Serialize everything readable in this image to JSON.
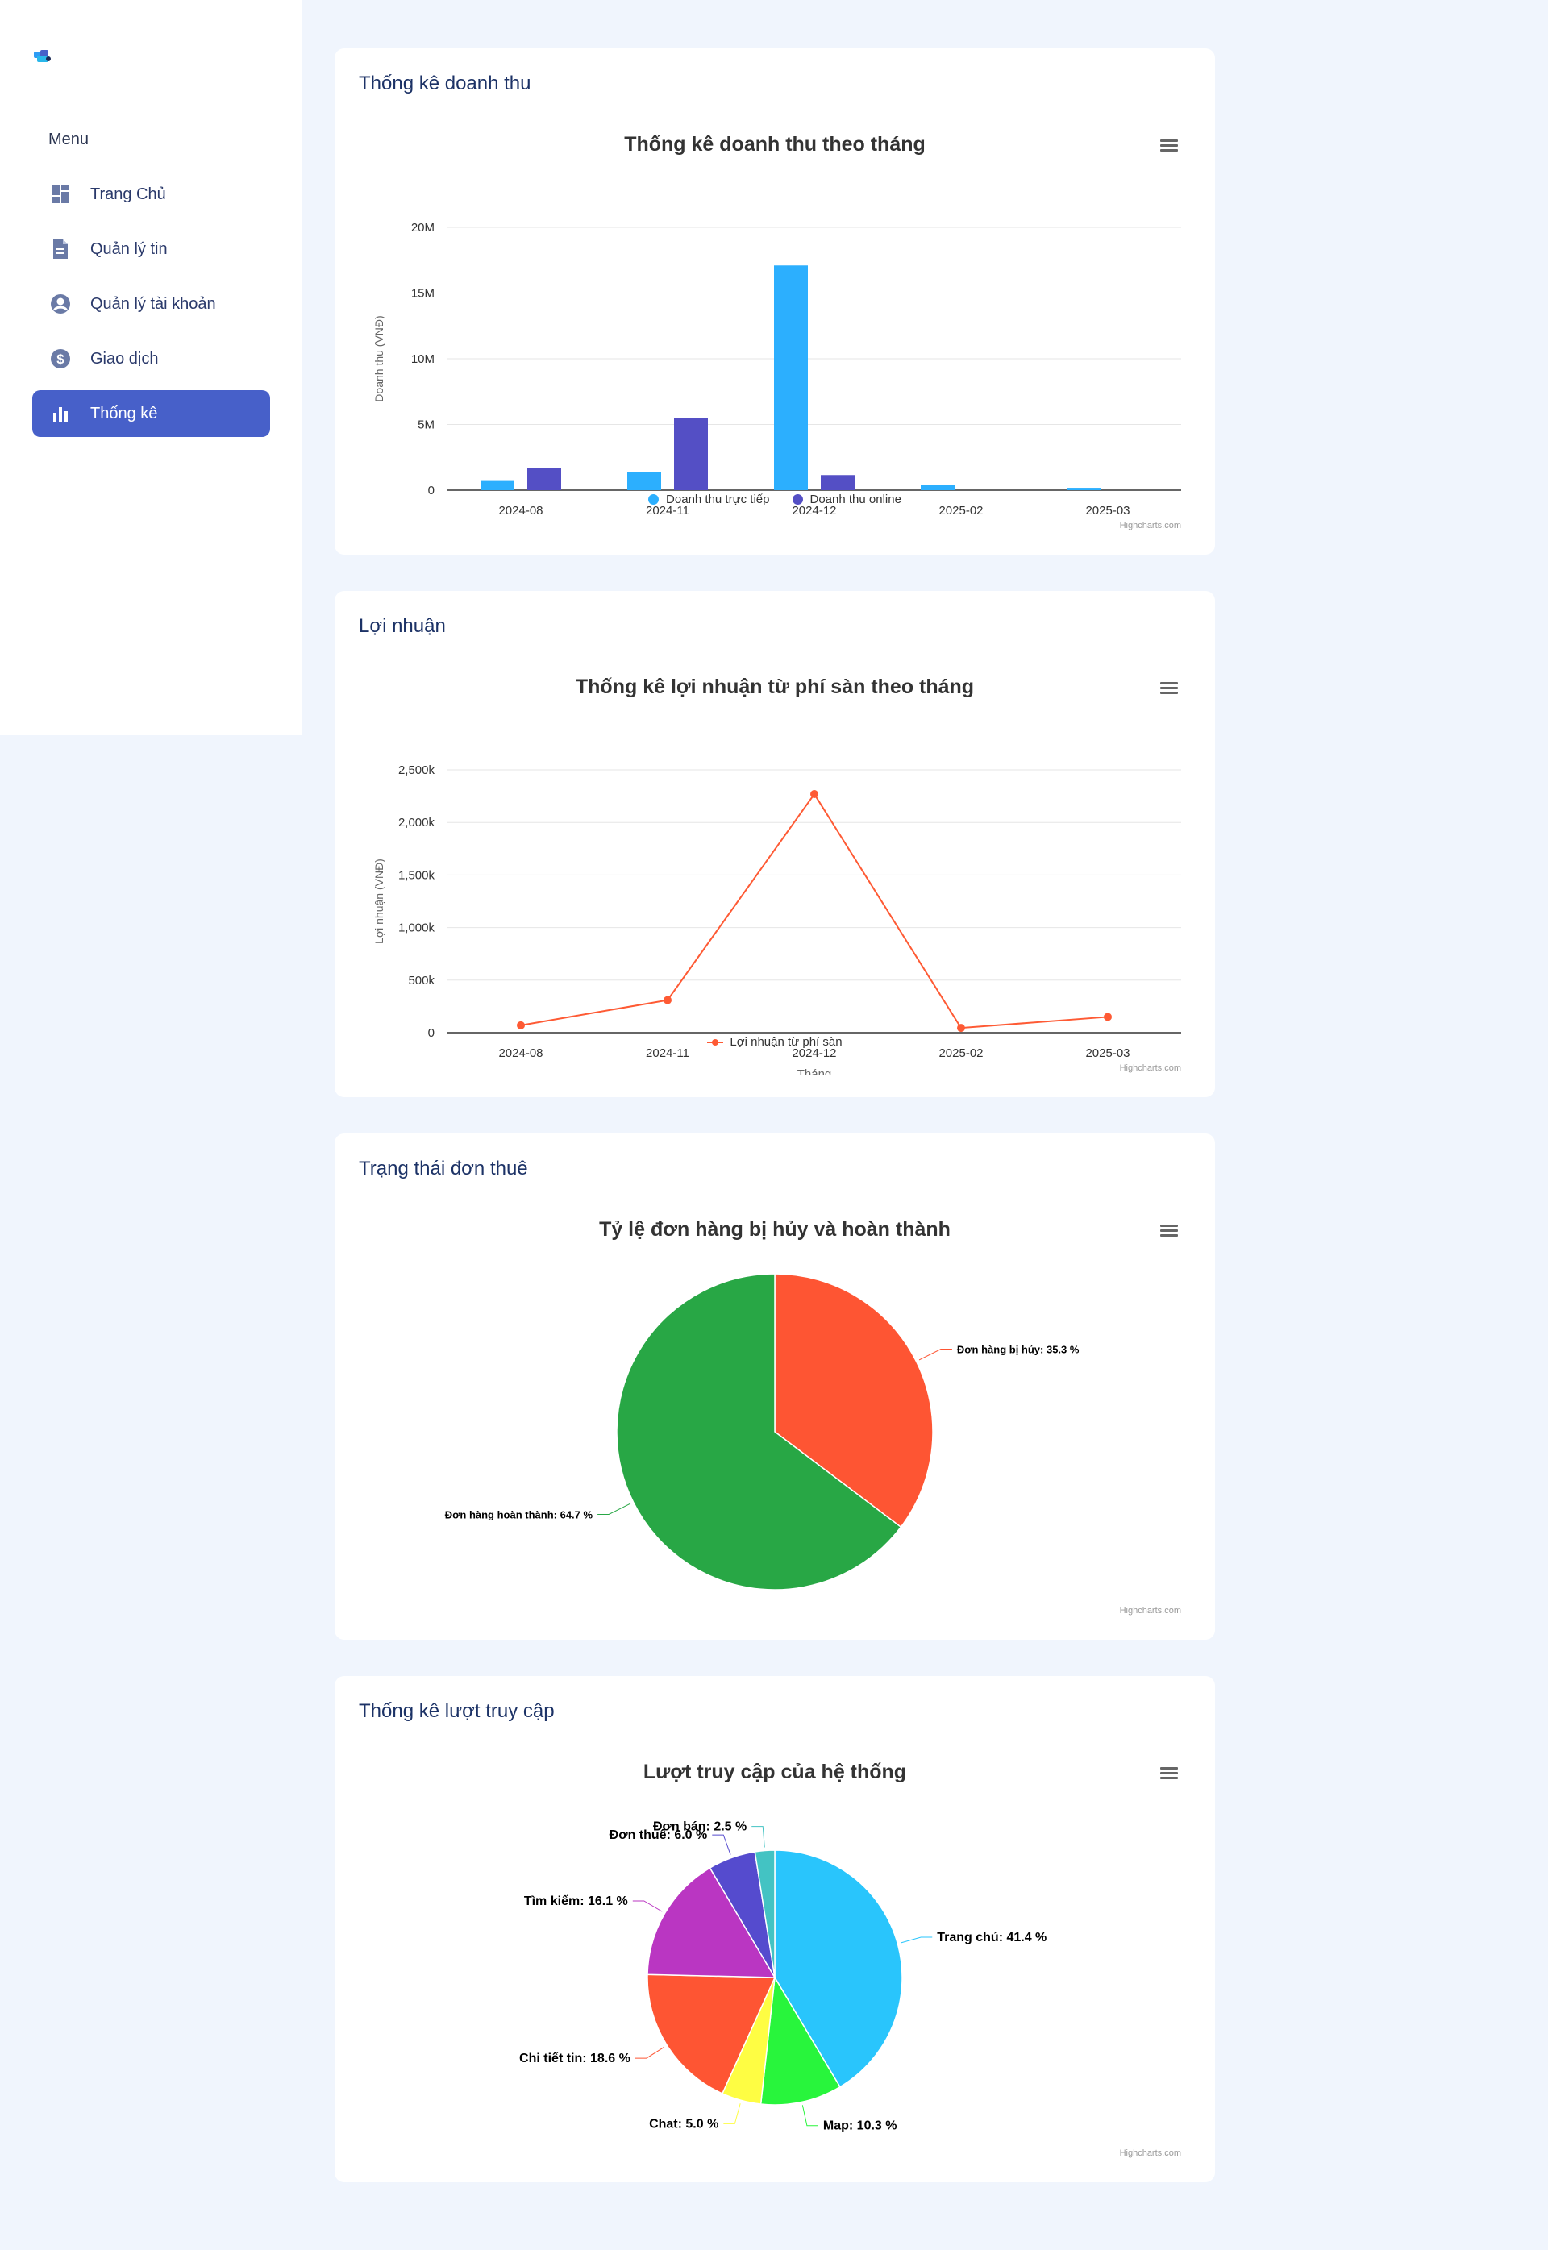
{
  "sidebar": {
    "menu_heading": "Menu",
    "items": [
      {
        "label": "Trang Chủ",
        "icon": "dashboard-icon",
        "active": false
      },
      {
        "label": "Quản lý tin",
        "icon": "document-icon",
        "active": false
      },
      {
        "label": "Quản lý tài khoản",
        "icon": "user-circle-icon",
        "active": false
      },
      {
        "label": "Giao dịch",
        "icon": "dollar-icon",
        "active": false
      },
      {
        "label": "Thống kê",
        "icon": "bar-chart-icon",
        "active": true
      }
    ]
  },
  "cards": [
    {
      "title": "Thống kê doanh thu",
      "credits": "Highcharts.com"
    },
    {
      "title": "Lợi nhuận",
      "credits": "Highcharts.com"
    },
    {
      "title": "Trạng thái đơn thuê",
      "credits": "Highcharts.com"
    },
    {
      "title": "Thống kê lượt truy cập",
      "credits": "Highcharts.com"
    }
  ],
  "chart_data": [
    {
      "type": "bar",
      "title": "Thống kê doanh thu theo tháng",
      "xlabel": "",
      "ylabel": "Doanh thu (VNĐ)",
      "ylim": [
        0,
        20000000
      ],
      "yticks": [
        "0",
        "5M",
        "10M",
        "15M",
        "20M"
      ],
      "categories": [
        "2024-08",
        "2024-11",
        "2024-12",
        "2025-02",
        "2025-03"
      ],
      "series": [
        {
          "name": "Doanh thu trực tiếp",
          "color": "#2caffe",
          "values": [
            700000,
            1350000,
            17100000,
            400000,
            180000
          ]
        },
        {
          "name": "Doanh thu online",
          "color": "#544fc5",
          "values": [
            1700000,
            5500000,
            1150000,
            0,
            0
          ]
        }
      ],
      "legend": "bottom-center",
      "grid": true
    },
    {
      "type": "line",
      "title": "Thống kê lợi nhuận từ phí sàn theo tháng",
      "xlabel": "Tháng",
      "ylabel": "Lợi nhuận (VNĐ)",
      "ylim": [
        0,
        2500000
      ],
      "yticks": [
        "0",
        "500k",
        "1,000k",
        "1,500k",
        "2,000k",
        "2,500k"
      ],
      "categories": [
        "2024-08",
        "2024-11",
        "2024-12",
        "2025-02",
        "2025-03"
      ],
      "series": [
        {
          "name": "Lợi nhuận từ phí sàn",
          "color": "#fe5a34",
          "values": [
            70000,
            310000,
            2270000,
            45000,
            150000
          ]
        }
      ],
      "legend": "bottom-center",
      "grid": true
    },
    {
      "type": "pie",
      "title": "Tỷ lệ đơn hàng bị hủy và hoàn thành",
      "slices": [
        {
          "name": "Đơn hàng bị hủy",
          "value": 35.3,
          "label": "Đơn hàng bị hủy: 35.3 %",
          "color": "#fe5533"
        },
        {
          "name": "Đơn hàng hoàn thành",
          "value": 64.7,
          "label": "Đơn hàng hoàn thành: 64.7 %",
          "color": "#28a745"
        }
      ]
    },
    {
      "type": "pie",
      "title": "Lượt truy cập của hệ thống",
      "slices": [
        {
          "name": "Trang chủ",
          "value": 41.4,
          "label": "Trang chủ: 41.4 %",
          "color": "#29c5fc"
        },
        {
          "name": "Map",
          "value": 10.3,
          "label": "Map: 10.3 %",
          "color": "#28f53c"
        },
        {
          "name": "Chat",
          "value": 5.0,
          "label": "Chat: 5.0 %",
          "color": "#fefd43"
        },
        {
          "name": "Chi tiết tin",
          "value": 18.6,
          "label": "Chi tiết tin: 18.6 %",
          "color": "#fe5533"
        },
        {
          "name": "Tìm kiếm",
          "value": 16.1,
          "label": "Tìm kiếm: 16.1 %",
          "color": "#ba36c2"
        },
        {
          "name": "Đơn thuê",
          "value": 6.0,
          "label": "Đơn thuê: 6.0 %",
          "color": "#554bce"
        },
        {
          "name": "Đơn bán",
          "value": 2.5,
          "label": "Đơn bán: 2.5 %",
          "color": "#43c3c3"
        }
      ]
    }
  ]
}
